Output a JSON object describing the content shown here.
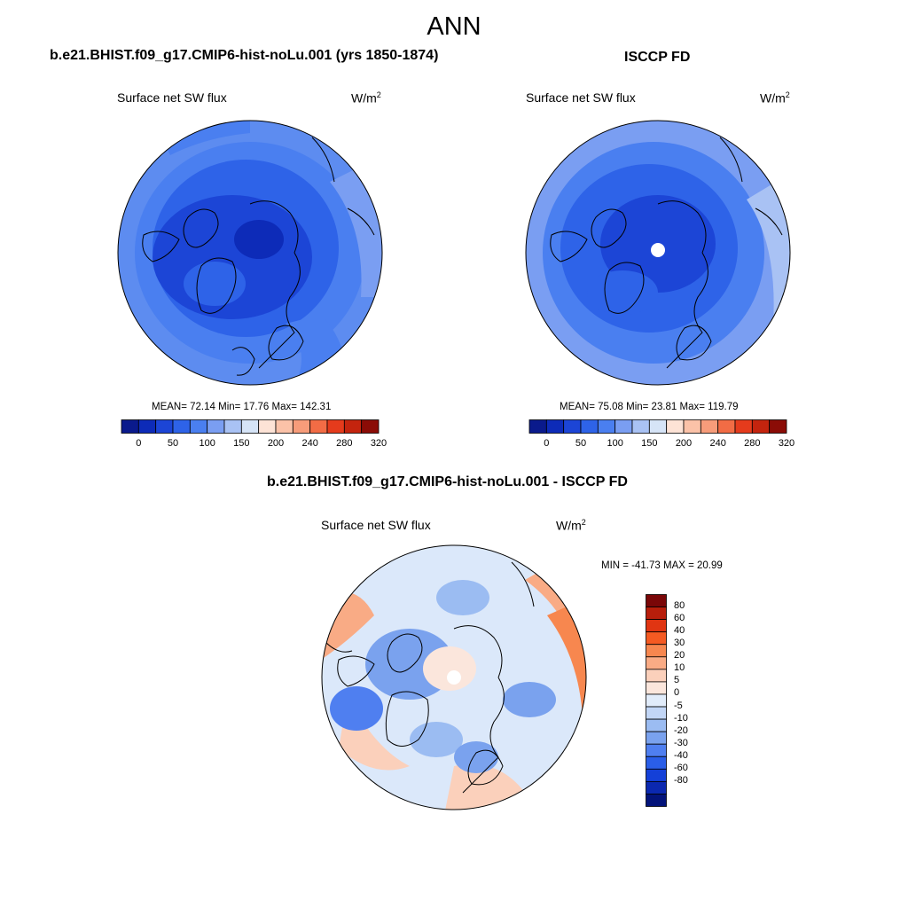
{
  "figure": {
    "title": "ANN"
  },
  "panels": {
    "model": {
      "title": "b.e21.BHIST.f09_g17.CMIP6-hist-noLu.001 (yrs 1850-1874)",
      "variable": "Surface net SW flux",
      "units_base": "W/m",
      "units_exp": "2",
      "stats": "MEAN=  72.14  Min=  17.76  Max= 142.31"
    },
    "obs": {
      "title": "ISCCP FD",
      "variable": "Surface net SW flux",
      "units_base": "W/m",
      "units_exp": "2",
      "stats": "MEAN=  75.08  Min=  23.81  Max= 119.79"
    },
    "diff": {
      "title": "b.e21.BHIST.f09_g17.CMIP6-hist-noLu.001 - ISCCP FD",
      "variable": "Surface net SW flux",
      "units_base": "W/m",
      "units_exp": "2",
      "stats": "MIN = -41.73 MAX =  20.99"
    }
  },
  "colorbars": {
    "abs": {
      "labels": [
        "0",
        "50",
        "100",
        "150",
        "200",
        "240",
        "280",
        "320"
      ],
      "colors": [
        "#0a1a8c",
        "#0d2bb8",
        "#1c45d6",
        "#2e63e8",
        "#4a7ff0",
        "#7a9ef2",
        "#a9c2f4",
        "#d6e4f7",
        "#fde3d6",
        "#fbc2a8",
        "#f79c7a",
        "#f26c45",
        "#e53b1c",
        "#c4240e",
        "#8b0c06"
      ]
    },
    "diff": {
      "labels": [
        "80",
        "60",
        "40",
        "30",
        "20",
        "10",
        "5",
        "0",
        "-5",
        "-10",
        "-20",
        "-30",
        "-40",
        "-60",
        "-80"
      ],
      "colors": [
        "#7a0708",
        "#b81e0b",
        "#e03512",
        "#f55a22",
        "#f7874f",
        "#f9ab85",
        "#fbd0bb",
        "#fbe6dc",
        "#e1ecfa",
        "#c2d6f6",
        "#9bbcf2",
        "#7aa2ee",
        "#4f7ff0",
        "#2a5ee8",
        "#1440d8",
        "#0b28b0",
        "#03137a"
      ]
    }
  },
  "colors": {
    "model_bg": "#3f6fe8",
    "obs_bg": "#3f6fe8",
    "diff_bg": "#dbe8fa",
    "coast": "#000000"
  }
}
